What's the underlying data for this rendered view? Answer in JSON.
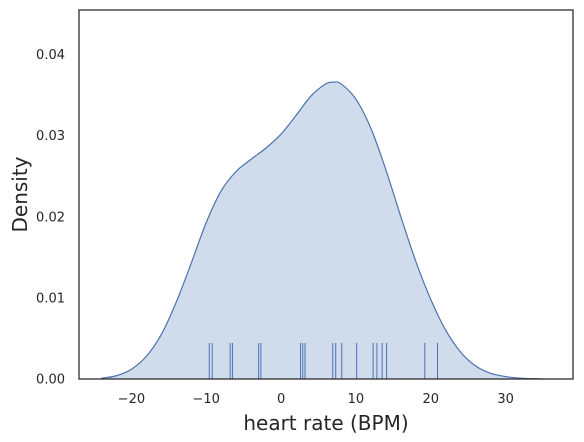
{
  "chart_data": {
    "type": "area",
    "subtype": "kde-with-rug",
    "title": "",
    "xlabel": "heart rate (BPM)",
    "ylabel": "Density",
    "xlim": [
      -27,
      39
    ],
    "ylim": [
      0,
      0.0455
    ],
    "grid": false,
    "legend": "none",
    "x_ticks": [
      -20,
      -10,
      0,
      10,
      20,
      30
    ],
    "x_tick_labels": [
      "−20",
      "−10",
      "0",
      "10",
      "20",
      "30"
    ],
    "y_ticks": [
      0.0,
      0.01,
      0.02,
      0.03,
      0.04
    ],
    "y_tick_labels": [
      "0.00",
      "0.01",
      "0.02",
      "0.03",
      "0.04"
    ],
    "density_curve": {
      "x": [
        -24,
        -22,
        -20,
        -18,
        -16,
        -14,
        -12,
        -10,
        -8,
        -6,
        -4,
        -2,
        0,
        2,
        4,
        6,
        7,
        8,
        10,
        12,
        14,
        16,
        18,
        20,
        22,
        24,
        26,
        28,
        30,
        32,
        34,
        35
      ],
      "y": [
        0.0001,
        0.0004,
        0.0012,
        0.0028,
        0.0055,
        0.0095,
        0.0143,
        0.0193,
        0.0232,
        0.0256,
        0.0271,
        0.0285,
        0.0302,
        0.0325,
        0.0349,
        0.0364,
        0.0366,
        0.0364,
        0.0345,
        0.0309,
        0.0258,
        0.02,
        0.0145,
        0.0098,
        0.006,
        0.0033,
        0.0016,
        0.0007,
        0.0003,
        0.0001,
        3e-05,
        0.0
      ]
    },
    "rug_values": [
      -9.6,
      -9.2,
      -6.8,
      -6.5,
      -3,
      -2.7,
      2.6,
      2.9,
      3.2,
      6.9,
      7.3,
      8.1,
      10.1,
      12.3,
      12.8,
      13.5,
      14.1,
      19.2,
      20.9
    ],
    "colors": {
      "line": "#4c72b0",
      "fill": "#d0dbec",
      "rug": "#4c72b0",
      "axes": "#262626",
      "text": "#262626"
    }
  }
}
